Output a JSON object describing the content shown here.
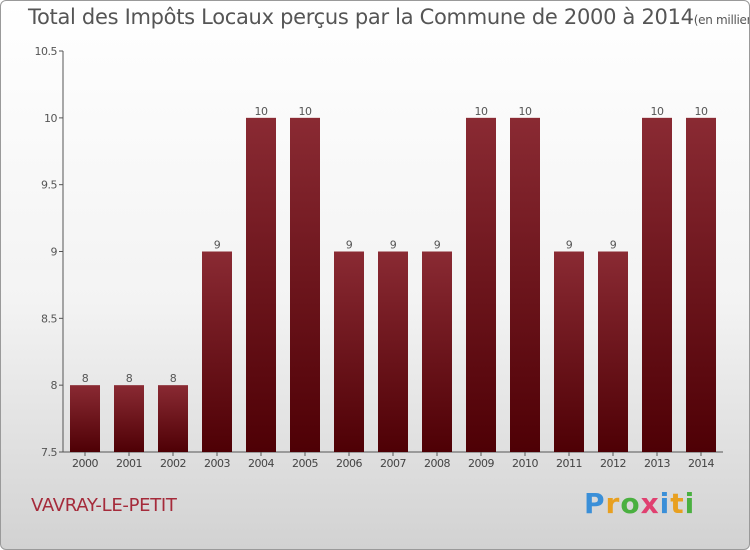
{
  "title": "Total des Impôts Locaux perçus par la Commune de 2000 à 2014",
  "title_unit": "(en milliers d'€)",
  "commune": "VAVRAY-LE-PETIT",
  "logo": {
    "text": "Proxiti",
    "letters": [
      {
        "char": "P",
        "color": "#3a8fd8"
      },
      {
        "char": "r",
        "color": "#e8a020"
      },
      {
        "char": "o",
        "color": "#4ab040"
      },
      {
        "char": "x",
        "color": "#e04070"
      },
      {
        "char": "i",
        "color": "#3a8fd8"
      },
      {
        "char": "t",
        "color": "#e8a020"
      },
      {
        "char": "i",
        "color": "#4ab040"
      }
    ]
  },
  "chart_data": {
    "type": "bar",
    "categories": [
      "2000",
      "2001",
      "2002",
      "2003",
      "2004",
      "2005",
      "2006",
      "2007",
      "2008",
      "2009",
      "2010",
      "2011",
      "2012",
      "2013",
      "2014"
    ],
    "values": [
      8,
      8,
      8,
      9,
      10,
      10,
      9,
      9,
      9,
      10,
      10,
      9,
      9,
      10,
      10
    ],
    "data_labels": [
      "8",
      "8",
      "8",
      "9",
      "10",
      "10",
      "9",
      "9",
      "9",
      "10",
      "10",
      "9",
      "9",
      "10",
      "10"
    ],
    "yticks": [
      "7.5",
      "8",
      "8.5",
      "9",
      "9.5",
      "10",
      "10.5"
    ],
    "ylim": [
      7.5,
      10.5
    ],
    "grid": false,
    "bar_color": "#6b0f14"
  }
}
